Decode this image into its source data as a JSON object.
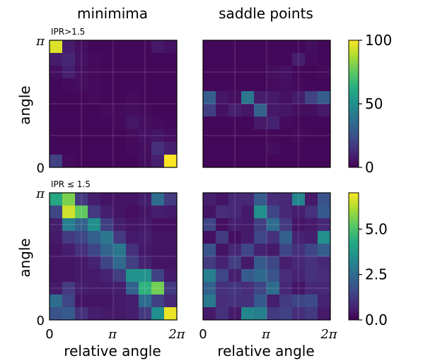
{
  "chart_data": {
    "type": "heatmap",
    "column_titles": [
      "minimima",
      "saddle points"
    ],
    "row_labels": [
      "IPR>1.5",
      "IPR ≤ 1.5"
    ],
    "ylabel": "angle",
    "xlabel": "relative angle",
    "x_ticks": [
      "0",
      "π",
      "2π"
    ],
    "y_ticks": [
      "0",
      "π"
    ],
    "grid": true,
    "colormap": "viridis",
    "panels": [
      {
        "name": "minimima IPR>1.5",
        "row": 0,
        "col": 0,
        "vmin": 0,
        "vmax": 100,
        "values": [
          [
            95,
            8,
            4,
            2,
            2,
            2,
            2,
            2,
            7,
            5
          ],
          [
            8,
            11,
            5,
            3,
            2,
            2,
            2,
            2,
            2,
            2
          ],
          [
            4,
            9,
            4,
            3,
            2,
            2,
            2,
            2,
            2,
            2
          ],
          [
            2,
            3,
            4,
            3,
            2,
            2,
            2,
            2,
            2,
            2
          ],
          [
            2,
            2,
            2,
            3,
            2,
            2,
            3,
            2,
            2,
            2
          ],
          [
            2,
            2,
            2,
            2,
            3,
            3,
            4,
            3,
            2,
            2
          ],
          [
            2,
            2,
            2,
            2,
            2,
            3,
            6,
            4,
            3,
            2
          ],
          [
            2,
            2,
            2,
            2,
            2,
            2,
            3,
            5,
            6,
            4
          ],
          [
            2,
            2,
            2,
            2,
            2,
            2,
            3,
            4,
            14,
            9
          ],
          [
            20,
            3,
            2,
            2,
            2,
            2,
            2,
            4,
            9,
            100
          ]
        ]
      },
      {
        "name": "saddle points IPR>1.5",
        "row": 0,
        "col": 1,
        "vmin": 0,
        "vmax": 100,
        "values": [
          [
            2,
            2,
            2,
            2,
            2,
            2,
            2,
            2,
            4,
            2
          ],
          [
            2,
            2,
            2,
            2,
            2,
            2,
            2,
            9,
            3,
            2
          ],
          [
            2,
            2,
            2,
            2,
            2,
            4,
            5,
            2,
            2,
            3
          ],
          [
            2,
            2,
            2,
            2,
            2,
            3,
            4,
            3,
            2,
            2
          ],
          [
            30,
            6,
            4,
            40,
            8,
            7,
            5,
            8,
            20,
            30
          ],
          [
            19,
            5,
            9,
            6,
            32,
            7,
            6,
            4,
            4,
            7
          ],
          [
            2,
            2,
            2,
            2,
            7,
            10,
            3,
            2,
            2,
            2
          ],
          [
            2,
            2,
            2,
            2,
            2,
            2,
            2,
            3,
            2,
            2
          ],
          [
            2,
            2,
            2,
            2,
            2,
            4,
            2,
            2,
            2,
            2
          ],
          [
            2,
            2,
            2,
            2,
            2,
            2,
            2,
            2,
            2,
            2
          ]
        ]
      },
      {
        "name": "minimima IPR ≤ 1.5",
        "row": 1,
        "col": 0,
        "vmin": 0,
        "vmax": 7,
        "values": [
          [
            4.2,
            5.6,
            1.2,
            0.6,
            0.4,
            0.4,
            0.4,
            0.6,
            2.5,
            1.2
          ],
          [
            1.5,
            6.5,
            5.3,
            1.2,
            0.6,
            0.4,
            0.3,
            0.4,
            0.6,
            0.5
          ],
          [
            0.6,
            3.0,
            2.2,
            3.5,
            1.3,
            0.6,
            0.4,
            0.5,
            0.3,
            0.3
          ],
          [
            0.5,
            1.2,
            1.5,
            2.2,
            2.8,
            1.2,
            0.5,
            0.6,
            0.4,
            0.4
          ],
          [
            0.4,
            0.6,
            1.0,
            1.5,
            2.3,
            2.8,
            1.0,
            0.5,
            0.4,
            0.4
          ],
          [
            0.4,
            0.4,
            0.5,
            0.7,
            1.5,
            2.4,
            1.3,
            0.7,
            0.4,
            0.4
          ],
          [
            0.4,
            0.4,
            0.5,
            0.5,
            0.7,
            1.3,
            3.6,
            3.6,
            1.4,
            0.5
          ],
          [
            0.5,
            1.2,
            0.6,
            0.5,
            0.5,
            0.6,
            2.2,
            4.5,
            5.5,
            1.2
          ],
          [
            2.5,
            1.5,
            0.4,
            0.4,
            0.4,
            0.5,
            0.6,
            2.5,
            1.4,
            0.8
          ],
          [
            1.8,
            2.0,
            1.0,
            0.6,
            0.5,
            0.5,
            0.6,
            1.2,
            3.5,
            6.8
          ]
        ]
      },
      {
        "name": "saddle points IPR ≤ 1.5",
        "row": 1,
        "col": 1,
        "vmin": 0,
        "vmax": 7,
        "values": [
          [
            0.6,
            0.4,
            0.8,
            0.8,
            2.0,
            0.9,
            0.8,
            3.2,
            0.5,
            1.8
          ],
          [
            0.4,
            0.9,
            0.8,
            0.5,
            3.5,
            1.5,
            0.8,
            0.6,
            1.0,
            2.0
          ],
          [
            1.5,
            0.3,
            0.6,
            0.5,
            1.3,
            2.5,
            1.2,
            0.4,
            0.5,
            0.8
          ],
          [
            0.3,
            1.2,
            0.3,
            0.5,
            1.5,
            1.0,
            2.2,
            0.7,
            0.6,
            3.5
          ],
          [
            1.8,
            0.4,
            0.8,
            1.5,
            0.7,
            0.5,
            1.5,
            1.0,
            1.5,
            2.1
          ],
          [
            1.2,
            0.7,
            1.3,
            0.5,
            2.0,
            1.5,
            0.6,
            0.8,
            1.0,
            0.8
          ],
          [
            3.0,
            1.5,
            0.6,
            2.0,
            2.4,
            1.8,
            0.9,
            0.7,
            1.0,
            0.9
          ],
          [
            2.2,
            1.0,
            1.1,
            0.9,
            1.5,
            2.5,
            0.8,
            0.4,
            0.8,
            0.8
          ],
          [
            2.8,
            0.9,
            1.0,
            1.0,
            2.0,
            0.6,
            1.2,
            1.5,
            1.6,
            0.7
          ],
          [
            0.5,
            1.0,
            0.5,
            3.2,
            3.0,
            1.2,
            1.4,
            0.9,
            1.2,
            0.5
          ]
        ]
      }
    ],
    "colorbars": [
      {
        "row": 0,
        "vmin": 0,
        "vmax": 100,
        "ticks": [
          0,
          50,
          100
        ],
        "tick_labels": [
          "0",
          "50",
          "100"
        ]
      },
      {
        "row": 1,
        "vmin": 0,
        "vmax": 7,
        "ticks": [
          0,
          2.5,
          5
        ],
        "tick_labels": [
          "0.0",
          "2.5",
          "5.0"
        ]
      }
    ]
  }
}
